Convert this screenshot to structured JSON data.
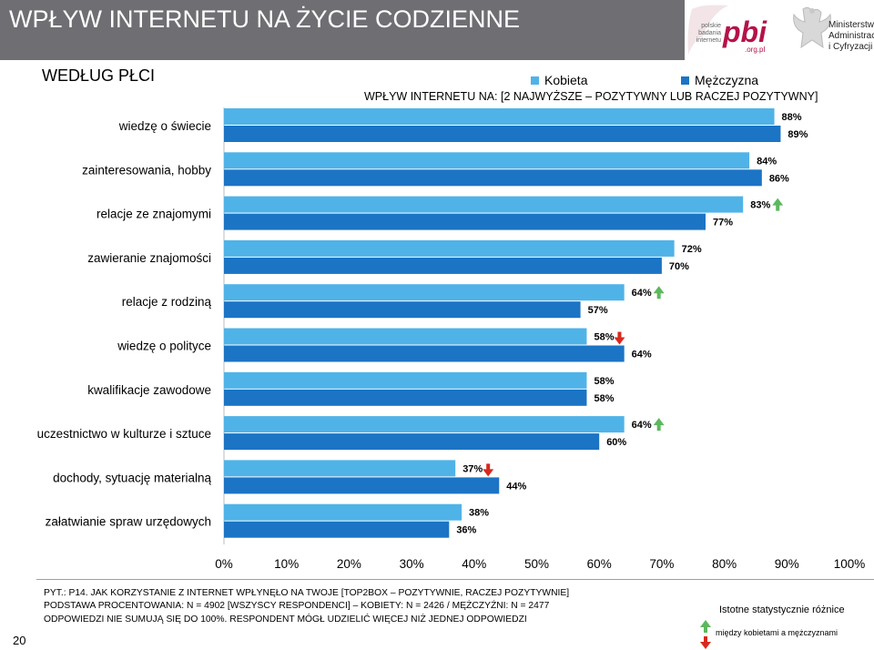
{
  "header": {
    "title": "WPŁYW INTERNETU NA ŻYCIE CODZIENNE",
    "logo_pbi_small": "polskie badania internetu",
    "logo_pbi_big": "pbi",
    "logo_pbi_domain": ".org.pl",
    "ministry_line1": "Ministerstwo",
    "ministry_line2": "Administracji",
    "ministry_line3": "i Cyfryzacji"
  },
  "subtitle": "WEDŁUG PŁCI",
  "legend": {
    "kobieta": "Kobieta",
    "mezczyzna": "Mężczyzna"
  },
  "colors": {
    "kobieta": "#4fb3e8",
    "mezczyzna": "#1c74c4",
    "up_arrow": "#5cb85c",
    "down_arrow": "#d9281c",
    "header_band": "#6f6f73"
  },
  "chart_data": {
    "type": "bar",
    "orientation": "horizontal",
    "title": "WPŁYW INTERNETU NA: [2 NAJWYŻSZE – POZYTYWNY LUB RACZEJ POZYTYWNY]",
    "categories": [
      "wiedzę o świecie",
      "zainteresowania, hobby",
      "relacje ze znajomymi",
      "zawieranie  znajomości",
      "relacje z rodziną",
      "wiedzę o polityce",
      "kwalifikacje zawodowe",
      "uczestnictwo w kulturze i sztuce",
      "dochody, sytuację materialną",
      "załatwianie spraw urzędowych"
    ],
    "series": [
      {
        "name": "Kobieta",
        "values": [
          88,
          84,
          83,
          72,
          64,
          58,
          58,
          64,
          37,
          38
        ]
      },
      {
        "name": "Mężczyzna",
        "values": [
          89,
          86,
          77,
          70,
          57,
          64,
          58,
          60,
          44,
          36
        ]
      }
    ],
    "significance": [
      "",
      "",
      "up",
      "",
      "up",
      "down",
      "",
      "up",
      "down",
      ""
    ],
    "xlim": [
      0,
      100
    ],
    "xticks": [
      "0%",
      "10%",
      "20%",
      "30%",
      "40%",
      "50%",
      "60%",
      "70%",
      "80%",
      "90%",
      "100%"
    ],
    "value_suffix": "%",
    "legend_position": "top-right"
  },
  "footer": {
    "line1": "PYT.: P14. JAK KORZYSTANIE Z INTERNET WPŁYNĘŁO NA TWOJE [TOP2BOX – POZYTYWNIE, RACZEJ POZYTYWNIE]",
    "line2": "PODSTAWA PROCENTOWANIA: N = 4902 [WSZYSCY RESPONDENCI] – KOBIETY: N = 2426 / MĘŻCZYŹNI: N = 2477",
    "line3": "ODPOWIEDZI NIE SUMUJĄ SIĘ DO 100%. RESPONDENT MÓGŁ UDZIELIĆ WIĘCEJ NIŻ JEDNEJ ODPOWIEDZI",
    "page_number": "20",
    "significance_title": "Istotne statystycznie różnice",
    "significance_sub": "między kobietami a mężczyznami"
  }
}
